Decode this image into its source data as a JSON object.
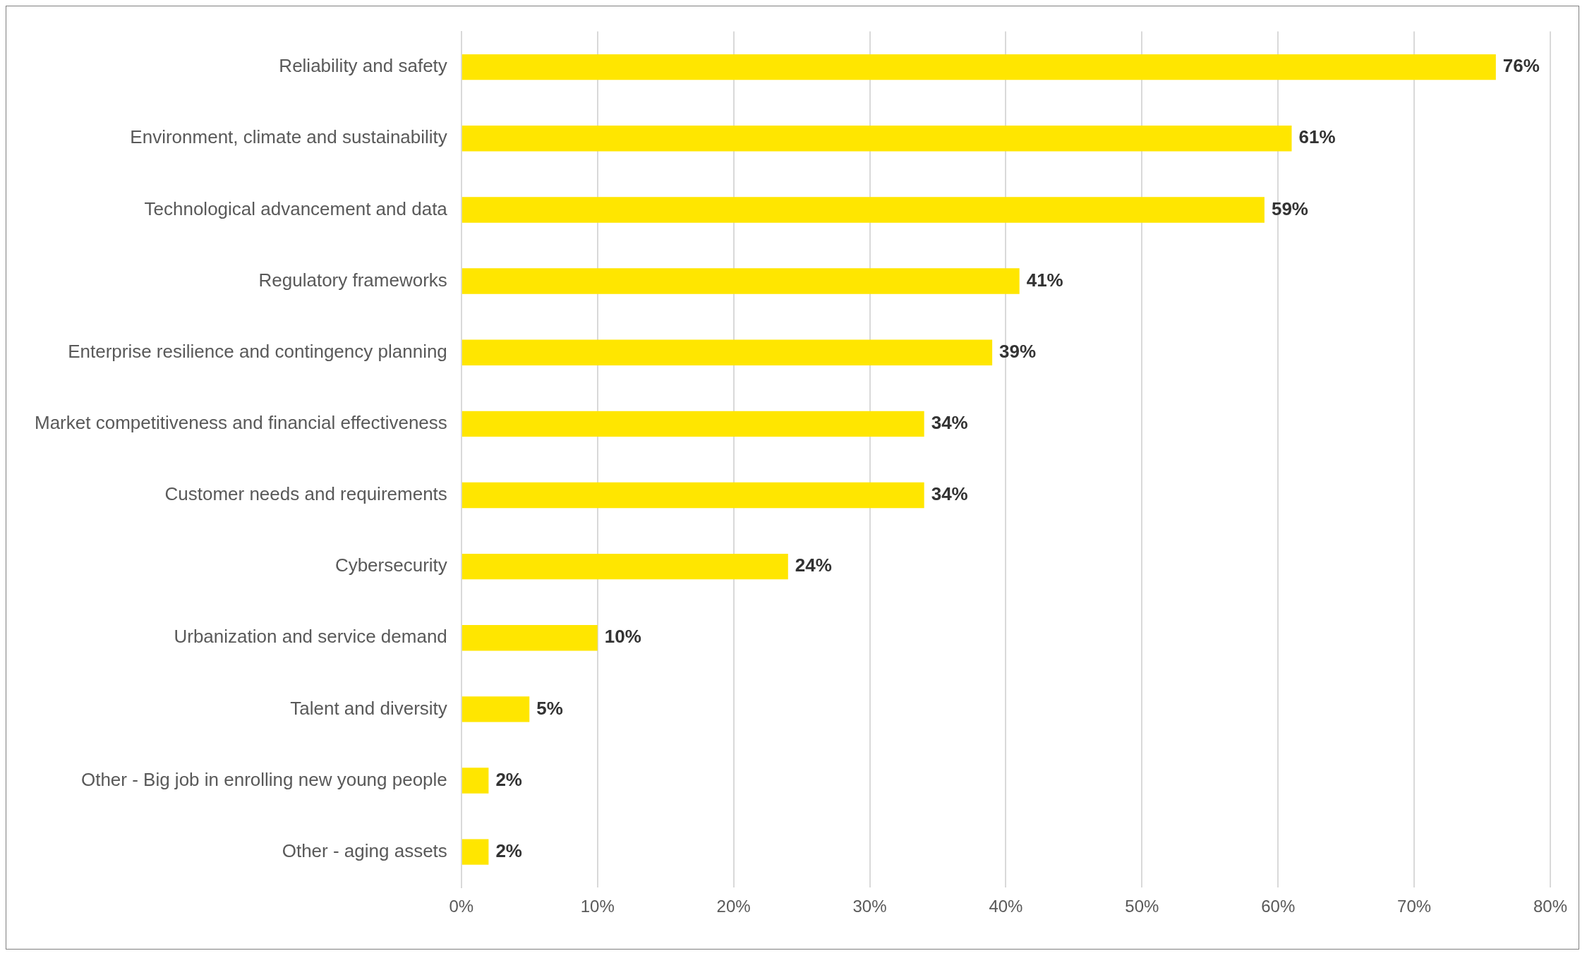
{
  "chart_data": {
    "type": "bar",
    "orientation": "horizontal",
    "categories": [
      "Reliability and safety",
      "Environment, climate and sustainability",
      "Technological advancement and data",
      "Regulatory frameworks",
      "Enterprise resilience and contingency planning",
      "Market competitiveness and financial effectiveness",
      "Customer needs and requirements",
      "Cybersecurity",
      "Urbanization and service demand",
      "Talent and diversity",
      "Other - Big job in enrolling new young people",
      "Other - aging assets"
    ],
    "values": [
      76,
      61,
      59,
      41,
      39,
      34,
      34,
      24,
      10,
      5,
      2,
      2
    ],
    "value_labels": [
      "76%",
      "61%",
      "59%",
      "41%",
      "39%",
      "34%",
      "34%",
      "24%",
      "10%",
      "5%",
      "2%",
      "2%"
    ],
    "color": "#ffe600",
    "xlim": [
      0,
      80
    ],
    "xticks": [
      {
        "value": 0,
        "label": "0%"
      },
      {
        "value": 10,
        "label": "10%"
      },
      {
        "value": 20,
        "label": "20%"
      },
      {
        "value": 30,
        "label": "30%"
      },
      {
        "value": 40,
        "label": "40%"
      },
      {
        "value": 50,
        "label": "50%"
      },
      {
        "value": 60,
        "label": "60%"
      },
      {
        "value": 70,
        "label": "70%"
      },
      {
        "value": 80,
        "label": "80%"
      }
    ],
    "grid": "x",
    "legend": false
  }
}
